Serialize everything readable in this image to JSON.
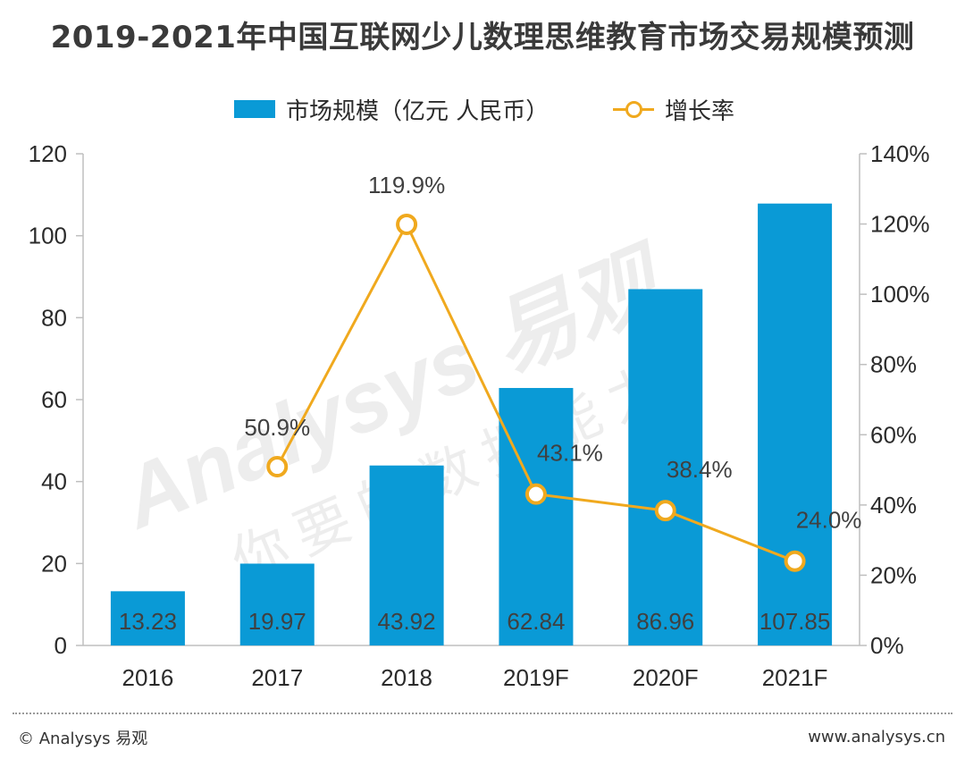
{
  "title": "2019-2021年中国互联网少儿数理思维教育市场交易规模预测",
  "legend": {
    "bar_label": "市场规模（亿元 人民币）",
    "line_label": "增长率"
  },
  "colors": {
    "bar": "#0a9ad6",
    "line": "#f0a91e",
    "text": "#2b2b2b",
    "axis": "#bfbfbf"
  },
  "chart_data": {
    "type": "bar",
    "categories": [
      "2016",
      "2017",
      "2018",
      "2019F",
      "2020F",
      "2021F"
    ],
    "series": [
      {
        "name": "市场规模（亿元 人民币）",
        "type": "bar",
        "axis": "left",
        "values": [
          13.23,
          19.97,
          43.92,
          62.84,
          86.96,
          107.85
        ],
        "labels": [
          "13.23",
          "19.97",
          "43.92",
          "62.84",
          "86.96",
          "107.85"
        ]
      },
      {
        "name": "增长率",
        "type": "line",
        "axis": "right",
        "values": [
          null,
          50.9,
          119.9,
          43.1,
          38.4,
          24.0
        ],
        "labels": [
          "",
          "50.9%",
          "119.9%",
          "43.1%",
          "38.4%",
          "24.0%"
        ]
      }
    ],
    "y_left": {
      "range": [
        0,
        120
      ],
      "ticks": [
        "0",
        "20",
        "40",
        "60",
        "80",
        "100",
        "120"
      ]
    },
    "y_right": {
      "range": [
        0,
        140
      ],
      "ticks": [
        "0%",
        "20%",
        "40%",
        "60%",
        "80%",
        "100%",
        "120%",
        "140%"
      ]
    },
    "grid": false,
    "legend_position": "top-center"
  },
  "watermark": {
    "brand": "Analysys 易观",
    "slogan": "你要的数据能力"
  },
  "footer": {
    "copyright": "© Analysys 易观",
    "url": "www.analysys.cn"
  }
}
